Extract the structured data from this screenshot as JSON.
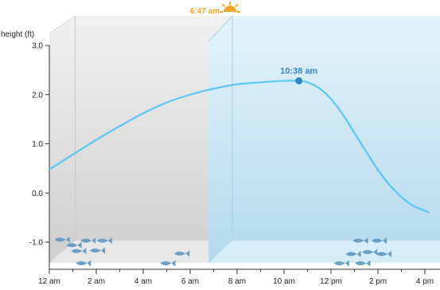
{
  "chart_data": {
    "type": "area",
    "ylabel": "height (ft)",
    "ylim": [
      -1.0,
      3.0
    ],
    "y_ticks": [
      "3.0",
      "2.0",
      "1.0",
      "0.0",
      "-1.0"
    ],
    "y_tick_values": [
      3.0,
      2.0,
      1.0,
      0.0,
      -1.0
    ],
    "x_ticks": [
      "12 am",
      "2 am",
      "4 am",
      "6 am",
      "8 am",
      "10 am",
      "12 pm",
      "2 pm",
      "4 pm"
    ],
    "x_tick_hours": [
      0,
      2,
      4,
      6,
      8,
      10,
      12,
      14,
      16
    ],
    "xlim_hours": [
      0,
      16.2
    ],
    "series": [
      {
        "x_hours": [
          0,
          1,
          2,
          3,
          4,
          5,
          6,
          7,
          8,
          9,
          10,
          10.633,
          11,
          11.5,
          12,
          12.5,
          13,
          13.5,
          14,
          14.5,
          15,
          15.5,
          16,
          16.2
        ],
        "y": [
          0.48,
          0.78,
          1.08,
          1.36,
          1.62,
          1.84,
          2.0,
          2.12,
          2.21,
          2.25,
          2.28,
          2.28,
          2.25,
          2.13,
          1.91,
          1.6,
          1.22,
          0.84,
          0.47,
          0.16,
          -0.08,
          -0.26,
          -0.36,
          -0.4
        ]
      }
    ],
    "annotations": {
      "sunrise": {
        "label": "6:47 am",
        "x_hours": 6.783,
        "icon": "sunrise-icon"
      },
      "peak": {
        "label": "10:38 am",
        "x_hours": 10.633,
        "y": 2.28
      }
    },
    "night_color": "#d4d4d4",
    "day_color": "#bfe0f0",
    "line_color": "#5ac8f2",
    "peak_color": "#2f86c9",
    "sun_color": "#f5a623",
    "fish_color": "#6a9ec2",
    "fish_icons": {
      "night": [
        [
          0.5,
          -0.95
        ],
        [
          1.0,
          -1.06
        ],
        [
          1.6,
          -0.97
        ],
        [
          2.3,
          -0.97
        ],
        [
          1.2,
          -1.18
        ],
        [
          2.0,
          -1.17
        ],
        [
          1.4,
          -1.43
        ],
        [
          5.0,
          -1.43
        ],
        [
          5.6,
          -1.23
        ]
      ],
      "day": [
        [
          12.4,
          -1.43
        ],
        [
          12.9,
          -1.24
        ],
        [
          13.2,
          -0.97
        ],
        [
          13.6,
          -1.2
        ],
        [
          13.3,
          -1.43
        ],
        [
          14.0,
          -0.97
        ],
        [
          14.2,
          -1.24
        ]
      ]
    }
  }
}
